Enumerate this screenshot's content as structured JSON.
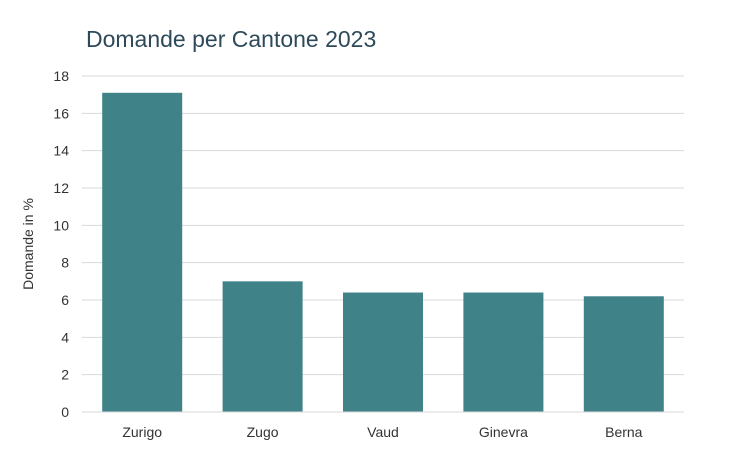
{
  "chart_data": {
    "type": "bar",
    "title": "Domande per Cantone 2023",
    "ylabel": "Domande in %",
    "xlabel": "",
    "categories": [
      "Zurigo",
      "Zugo",
      "Vaud",
      "Ginevra",
      "Berna"
    ],
    "values": [
      17.1,
      7.0,
      6.4,
      6.4,
      6.2
    ],
    "ylim": [
      0,
      18
    ],
    "yticks": [
      0,
      2,
      4,
      6,
      8,
      10,
      12,
      14,
      16,
      18
    ],
    "grid": true,
    "legend": "none",
    "bar_color": "#3f8389"
  }
}
